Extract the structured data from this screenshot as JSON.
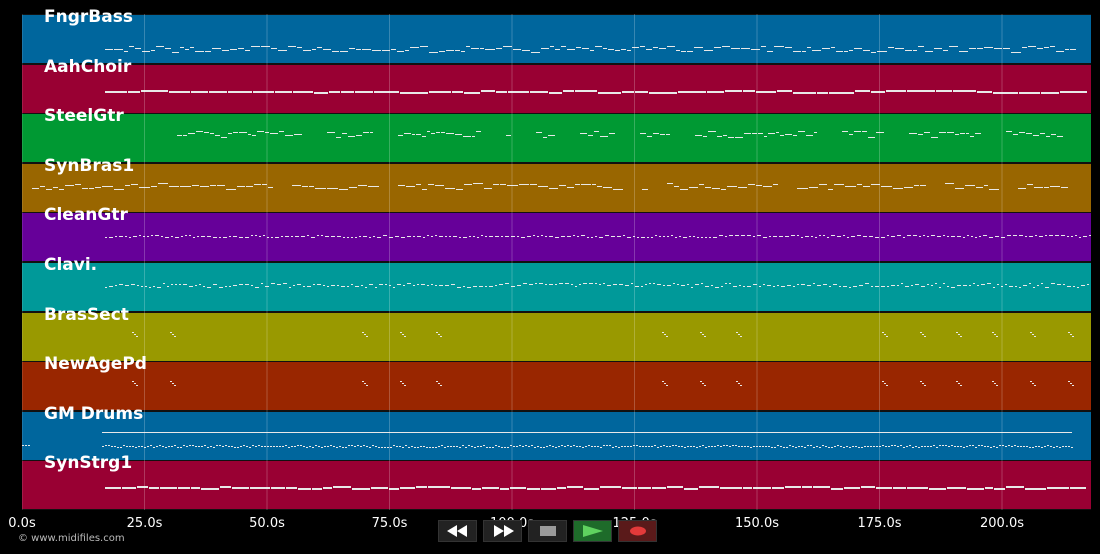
{
  "colors": {
    "background": "#000000",
    "grid": "#ffffff",
    "note": "#e8e8e8"
  },
  "tracks": [
    {
      "name": "FngrBass",
      "color": "#00669d"
    },
    {
      "name": "AahChoir",
      "color": "#990033"
    },
    {
      "name": "SteelGtr",
      "color": "#009933"
    },
    {
      "name": "SynBras1",
      "color": "#996600"
    },
    {
      "name": "CleanGtr",
      "color": "#660099"
    },
    {
      "name": "Clavi.",
      "color": "#009999"
    },
    {
      "name": "BrasSect",
      "color": "#999900"
    },
    {
      "name": "NewAgePd",
      "color": "#992600"
    },
    {
      "name": "GM Drums",
      "color": "#00669d"
    },
    {
      "name": "SynStrg1",
      "color": "#990033"
    }
  ],
  "time_axis": {
    "ticks": [
      "0.0s",
      "25.0s",
      "50.0s",
      "75.0s",
      "100.0s",
      "125.0s",
      "150.0s",
      "175.0s",
      "200.0s"
    ]
  },
  "transport": {
    "rewind_icon": "rewind-icon",
    "fast_forward_icon": "fast-forward-icon",
    "stop_icon": "stop-icon",
    "play_icon": "play-icon",
    "record_icon": "record-icon"
  },
  "footer": {
    "copyright": "© www.midifiles.com"
  }
}
